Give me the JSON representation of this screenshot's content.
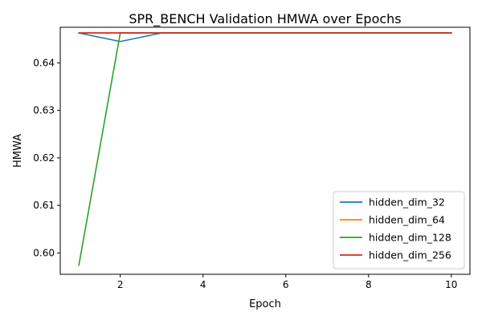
{
  "chart_data": {
    "type": "line",
    "title": "SPR_BENCH Validation HMWA over Epochs",
    "xlabel": "Epoch",
    "ylabel": "HMWA",
    "xlim": [
      0.55,
      10.45
    ],
    "ylim": [
      0.5955,
      0.6475
    ],
    "xticks": [
      2,
      4,
      6,
      8,
      10
    ],
    "yticks": [
      0.6,
      0.61,
      0.62,
      0.63,
      0.64
    ],
    "ytick_labels": [
      "0.60",
      "0.61",
      "0.62",
      "0.63",
      "0.64"
    ],
    "grid": false,
    "legend_position": "lower-right",
    "series": [
      {
        "name": "hidden_dim_32",
        "color": "#1f77b4",
        "x": [
          1,
          2,
          3,
          4,
          5,
          6,
          7,
          8,
          9,
          10
        ],
        "y": [
          0.6463,
          0.6445,
          0.6463,
          0.6463,
          0.6463,
          0.6463,
          0.6463,
          0.6463,
          0.6463,
          0.6463
        ]
      },
      {
        "name": "hidden_dim_64",
        "color": "#ff7f0e",
        "x": [
          1,
          2,
          3,
          4,
          5,
          6,
          7,
          8,
          9,
          10
        ],
        "y": [
          0.6463,
          0.6463,
          0.6463,
          0.6463,
          0.6463,
          0.6463,
          0.6463,
          0.6463,
          0.6463,
          0.6463
        ]
      },
      {
        "name": "hidden_dim_128",
        "color": "#2ca02c",
        "x": [
          1,
          2,
          3,
          4,
          5,
          6,
          7,
          8,
          9,
          10
        ],
        "y": [
          0.5974,
          0.6463,
          0.6463,
          0.6463,
          0.6463,
          0.6463,
          0.6463,
          0.6463,
          0.6463,
          0.6463
        ]
      },
      {
        "name": "hidden_dim_256",
        "color": "#d62728",
        "x": [
          1,
          2,
          3,
          4,
          5,
          6,
          7,
          8,
          9,
          10
        ],
        "y": [
          0.6463,
          0.6463,
          0.6463,
          0.6463,
          0.6463,
          0.6463,
          0.6463,
          0.6463,
          0.6463,
          0.6463
        ]
      }
    ]
  }
}
